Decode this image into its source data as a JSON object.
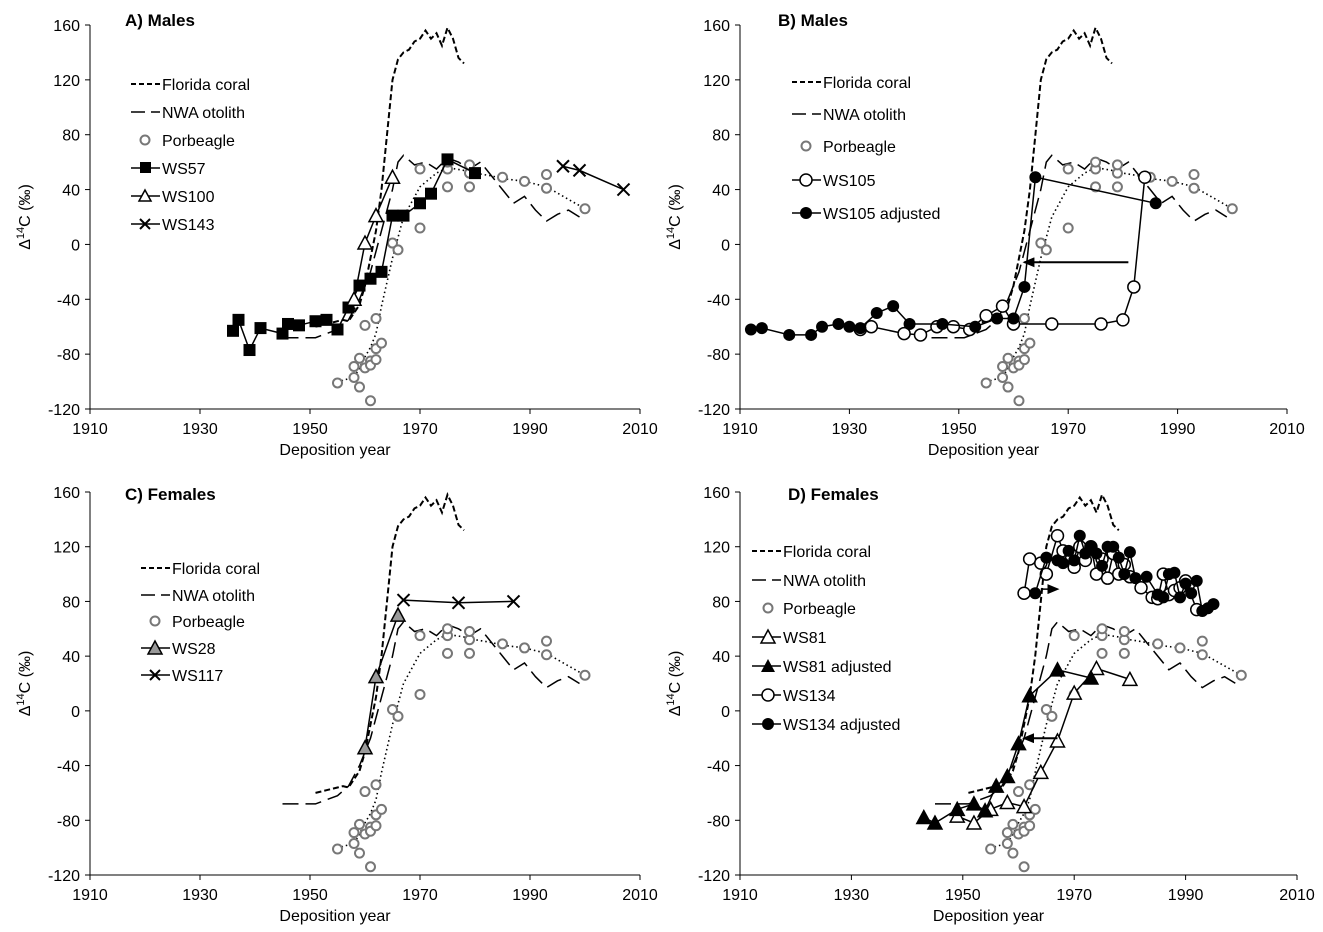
{
  "chart_data": [
    {
      "type": "line",
      "title": "A) Males",
      "xlabel": "Deposition year",
      "ylabel": "Δ14C (‰)",
      "xlim": [
        1910,
        2010
      ],
      "ylim": [
        -120,
        160
      ],
      "xticks": [
        "1910",
        "1930",
        "1950",
        "1970",
        "1990",
        "2010"
      ],
      "yticks": [
        "-120",
        "-80",
        "-40",
        "0",
        "40",
        "80",
        "120",
        "160"
      ],
      "legend": [
        "Florida coral",
        "NWA otolith",
        "Porbeagle",
        "WS57",
        "WS100",
        "WS143"
      ],
      "series": [
        {
          "name": "Florida coral",
          "style": "short-dash",
          "x": [
            1951,
            1953,
            1955,
            1956,
            1957,
            1958,
            1959,
            1960,
            1961,
            1962,
            1963,
            1964,
            1965,
            1966,
            1967,
            1968,
            1969,
            1970,
            1971,
            1972,
            1973,
            1974,
            1975,
            1976,
            1977,
            1978
          ],
          "y": [
            -60,
            -58,
            -56,
            -55,
            -56,
            -50,
            -44,
            -30,
            -10,
            10,
            40,
            80,
            120,
            135,
            140,
            142,
            148,
            150,
            156,
            150,
            154,
            145,
            158,
            150,
            136,
            132
          ]
        },
        {
          "name": "NWA otolith",
          "style": "long-dash",
          "x": [
            1945,
            1948,
            1951,
            1953,
            1955,
            1957,
            1959,
            1961,
            1963,
            1965,
            1966,
            1967,
            1969,
            1971,
            1973,
            1975,
            1977,
            1979,
            1981,
            1983,
            1985,
            1987,
            1989,
            1991,
            1993,
            1995,
            1997,
            1999
          ],
          "y": [
            -68,
            -68,
            -68,
            -65,
            -62,
            -55,
            -40,
            -20,
            10,
            40,
            60,
            65,
            58,
            60,
            55,
            63,
            60,
            55,
            60,
            50,
            40,
            30,
            35,
            25,
            17,
            22,
            25,
            20
          ]
        },
        {
          "name": "Porbeagle",
          "style": "open-circle-dotted",
          "x": [
            1955,
            1956,
            1958,
            1959,
            1960,
            1961,
            1962,
            1963,
            1965,
            1967,
            1970,
            1973,
            1975,
            1978,
            1980,
            1983,
            1985,
            1989,
            1993,
            2000
          ],
          "y": [
            -101,
            -99,
            -97,
            -90,
            -82,
            -75,
            -65,
            -45,
            -10,
            20,
            42,
            52,
            56,
            54,
            52,
            50,
            48,
            46,
            42,
            26
          ],
          "scatter_x": [
            1955,
            1958,
            1958,
            1959,
            1959,
            1960,
            1960,
            1961,
            1961,
            1961,
            1962,
            1962,
            1962,
            1963,
            1965,
            1966,
            1970,
            1975,
            1975,
            1979,
            1979,
            1979,
            1985,
            1989,
            1993,
            1993,
            2000,
            1975,
            1970
          ],
          "scatter_y": [
            -101,
            -97,
            -89,
            -104,
            -83,
            -59,
            -90,
            -85,
            -88,
            -114,
            -76,
            -54,
            -84,
            -72,
            1,
            -4,
            12,
            42,
            55,
            42,
            52,
            58,
            49,
            46,
            41,
            51,
            26,
            60,
            55
          ]
        },
        {
          "name": "WS57",
          "style": "filled-square",
          "x": [
            1936,
            1937,
            1939,
            1941,
            1945,
            1946,
            1948,
            1951,
            1953,
            1955,
            1957,
            1959,
            1961,
            1963,
            1965,
            1967,
            1970,
            1972,
            1975,
            1980
          ],
          "y": [
            -63,
            -55,
            -77,
            -61,
            -65,
            -58,
            -59,
            -56,
            -55,
            -62,
            -46,
            -30,
            -25,
            -20,
            21,
            21,
            30,
            37,
            62,
            52
          ]
        },
        {
          "name": "WS100",
          "style": "open-triangle",
          "x": [
            1958,
            1960,
            1962,
            1965
          ],
          "y": [
            -40,
            1,
            21,
            49
          ]
        },
        {
          "name": "WS143",
          "style": "x-marker",
          "x": [
            1996,
            1999,
            2007
          ],
          "y": [
            57,
            54,
            40
          ]
        }
      ]
    },
    {
      "type": "line",
      "title": "B) Males",
      "xlabel": "Deposition year",
      "ylabel": "Δ14C (‰)",
      "xlim": [
        1910,
        2010
      ],
      "ylim": [
        -120,
        160
      ],
      "xticks": [
        "1910",
        "1930",
        "1950",
        "1970",
        "1990",
        "2010"
      ],
      "yticks": [
        "-120",
        "-80",
        "-40",
        "0",
        "40",
        "80",
        "120",
        "160"
      ],
      "legend": [
        "Florida coral",
        "NWA otolith",
        "Porbeagle",
        "WS105",
        "WS105 adjusted"
      ],
      "series": [
        {
          "name": "WS105",
          "style": "open-circle",
          "x": [
            1932,
            1934,
            1940,
            1943,
            1946,
            1949,
            1952,
            1955,
            1958,
            1960,
            1967,
            1976,
            1980,
            1982,
            1984
          ],
          "y": [
            -62,
            -60,
            -65,
            -66,
            -60,
            -60,
            -62,
            -52,
            -45,
            -58,
            -58,
            -58,
            -55,
            -31,
            49
          ]
        },
        {
          "name": "WS105 adjusted",
          "style": "filled-circle",
          "x": [
            1912,
            1914,
            1919,
            1923,
            1925,
            1928,
            1930,
            1932,
            1935,
            1938,
            1941,
            1947,
            1953,
            1957,
            1960,
            1962,
            1964,
            1986
          ],
          "y": [
            -62,
            -61,
            -66,
            -66,
            -60,
            -58,
            -60,
            -61,
            -50,
            -45,
            -58,
            -58,
            -60,
            -54,
            -54,
            -31,
            49,
            30
          ]
        }
      ]
    },
    {
      "type": "line",
      "title": "C) Females",
      "xlabel": "Deposition year",
      "ylabel": "Δ14C (‰)",
      "xlim": [
        1910,
        2010
      ],
      "ylim": [
        -120,
        160
      ],
      "xticks": [
        "1910",
        "1930",
        "1950",
        "1970",
        "1990",
        "2010"
      ],
      "yticks": [
        "-120",
        "-80",
        "-40",
        "0",
        "40",
        "80",
        "120",
        "160"
      ],
      "legend": [
        "Florida coral",
        "NWA otolith",
        "Porbeagle",
        "WS28",
        "WS117"
      ],
      "series": [
        {
          "name": "WS28",
          "style": "gray-triangle",
          "x": [
            1960,
            1962,
            1966
          ],
          "y": [
            -27,
            25,
            70
          ]
        },
        {
          "name": "WS117",
          "style": "x-marker",
          "x": [
            1967,
            1977,
            1987
          ],
          "y": [
            81,
            79,
            80
          ]
        }
      ]
    },
    {
      "type": "line",
      "title": "D) Females",
      "xlabel": "Deposition year",
      "ylabel": "Δ14C (‰)",
      "xlim": [
        1910,
        2010
      ],
      "ylim": [
        -120,
        160
      ],
      "xticks": [
        "1910",
        "1930",
        "1950",
        "1970",
        "1990",
        "2010"
      ],
      "yticks": [
        "-120",
        "-80",
        "-40",
        "0",
        "40",
        "80",
        "120",
        "160"
      ],
      "legend": [
        "Florida coral",
        "NWA otolith",
        "Porbeagle",
        "WS81",
        "WS81 adjusted",
        "WS134",
        "WS134 adjusted"
      ],
      "series": [
        {
          "name": "WS81",
          "style": "open-triangle",
          "x": [
            1949,
            1952,
            1955,
            1958,
            1961,
            1964,
            1967,
            1970,
            1974,
            1980
          ],
          "y": [
            -77,
            -82,
            -72,
            -67,
            -70,
            -45,
            -22,
            13,
            31,
            23
          ]
        },
        {
          "name": "WS81 adjusted",
          "style": "filled-triangle",
          "x": [
            1943,
            1945,
            1949,
            1952,
            1954,
            1956,
            1958,
            1960,
            1962,
            1967,
            1973
          ],
          "y": [
            -78,
            -82,
            -72,
            -68,
            -73,
            -55,
            -48,
            -24,
            11,
            30,
            24
          ]
        },
        {
          "name": "WS134",
          "style": "open-circle",
          "x": [
            1961,
            1962,
            1964,
            1965,
            1967,
            1968,
            1969,
            1970,
            1971,
            1972,
            1973,
            1974,
            1975,
            1976,
            1977,
            1978,
            1979,
            1980,
            1982,
            1984,
            1985,
            1986,
            1987,
            1988,
            1989,
            1990,
            1992
          ],
          "y": [
            86,
            111,
            108,
            100,
            128,
            117,
            110,
            105,
            120,
            110,
            120,
            100,
            111,
            97,
            115,
            100,
            107,
            98,
            90,
            83,
            82,
            100,
            85,
            88,
            90,
            95,
            74
          ]
        },
        {
          "name": "WS134 adjusted",
          "style": "filled-circle",
          "x": [
            1963,
            1965,
            1967,
            1968,
            1969,
            1970,
            1971,
            1972,
            1973,
            1974,
            1975,
            1976,
            1977,
            1978,
            1979,
            1980,
            1981,
            1983,
            1985,
            1986,
            1987,
            1988,
            1989,
            1990,
            1991,
            1992,
            1993,
            1994,
            1995
          ],
          "y": [
            86,
            112,
            110,
            108,
            117,
            110,
            128,
            115,
            120,
            115,
            106,
            120,
            120,
            112,
            100,
            116,
            97,
            98,
            85,
            83,
            100,
            101,
            83,
            93,
            86,
            95,
            73,
            75,
            78
          ]
        }
      ]
    }
  ]
}
